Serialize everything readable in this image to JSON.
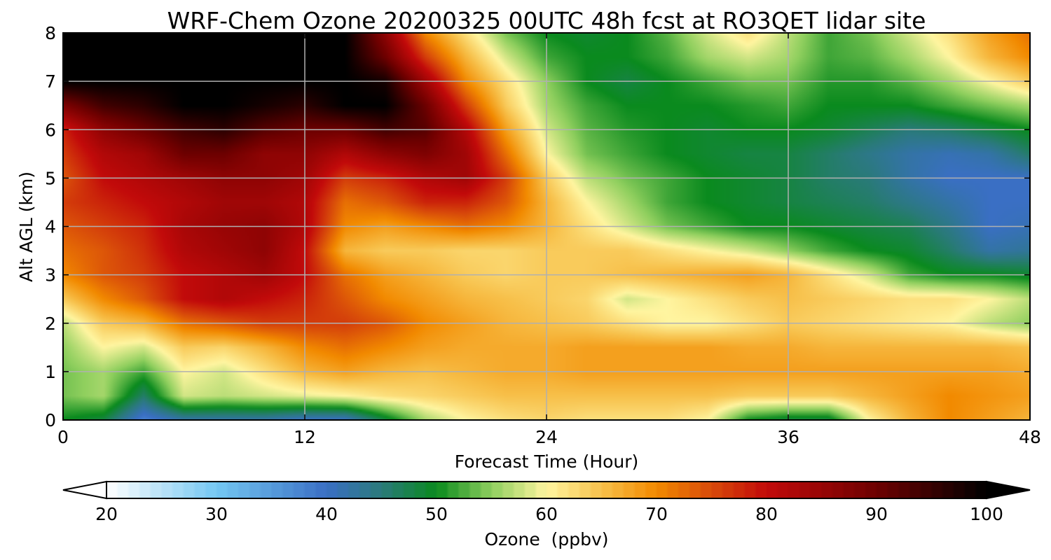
{
  "chart_data": {
    "type": "heatmap",
    "title": "WRF-Chem Ozone 20200325 00UTC 48h fcst at RO3QET lidar site",
    "xlabel": "Forecast Time (Hour)",
    "ylabel": "Alt AGL (km)",
    "xlim": [
      0,
      48
    ],
    "ylim": [
      0,
      8
    ],
    "xticks": [
      0,
      12,
      24,
      36,
      48
    ],
    "yticks": [
      0,
      1,
      2,
      3,
      4,
      5,
      6,
      7,
      8
    ],
    "grid": true,
    "x": [
      0,
      2,
      4,
      6,
      8,
      10,
      12,
      14,
      16,
      18,
      20,
      22,
      24,
      26,
      28,
      30,
      32,
      34,
      36,
      38,
      40,
      42,
      44,
      46,
      48
    ],
    "y": [
      0,
      0.5,
      1,
      1.5,
      2,
      2.5,
      3,
      3.5,
      4,
      4.5,
      5,
      5.5,
      6,
      6.5,
      7,
      7.5,
      8
    ],
    "z": [
      [
        50,
        48,
        38,
        42,
        42,
        42,
        40,
        40,
        48,
        56,
        60,
        62,
        63,
        62,
        62,
        62,
        60,
        50,
        48,
        48,
        60,
        66,
        70,
        68,
        66
      ],
      [
        54,
        56,
        46,
        58,
        57,
        58,
        59,
        60,
        62,
        63,
        64,
        65,
        65,
        65,
        65,
        65,
        65,
        64,
        64,
        64,
        66,
        68,
        70,
        69,
        68
      ],
      [
        54,
        56,
        52,
        60,
        58,
        62,
        66,
        68,
        66,
        65,
        66,
        67,
        67,
        68,
        68,
        68,
        68,
        68,
        68,
        68,
        68,
        68,
        68,
        68,
        67
      ],
      [
        55,
        60,
        58,
        64,
        63,
        66,
        70,
        72,
        70,
        68,
        67,
        67,
        67,
        68,
        68,
        68,
        68,
        67,
        67,
        66,
        66,
        66,
        66,
        66,
        65
      ],
      [
        57,
        64,
        66,
        72,
        74,
        76,
        76,
        76,
        74,
        70,
        68,
        66,
        65,
        64,
        62,
        60,
        60,
        62,
        64,
        63,
        62,
        61,
        60,
        57,
        55
      ],
      [
        64,
        70,
        74,
        80,
        82,
        80,
        78,
        74,
        70,
        68,
        66,
        65,
        64,
        63,
        58,
        60,
        62,
        64,
        65,
        64,
        63,
        62,
        62,
        60,
        57
      ],
      [
        70,
        74,
        76,
        80,
        82,
        84,
        80,
        72,
        68,
        66,
        64,
        63,
        64,
        64,
        65,
        66,
        67,
        68,
        66,
        62,
        58,
        52,
        50,
        50,
        49
      ],
      [
        72,
        74,
        77,
        82,
        84,
        86,
        80,
        66,
        64,
        64,
        63,
        63,
        64,
        64,
        64,
        62,
        60,
        58,
        55,
        52,
        50,
        49,
        46,
        42,
        43
      ],
      [
        74,
        76,
        78,
        83,
        85,
        86,
        82,
        70,
        68,
        70,
        72,
        70,
        66,
        62,
        58,
        54,
        52,
        50,
        50,
        49,
        48,
        47,
        44,
        40,
        41
      ],
      [
        76,
        78,
        80,
        82,
        84,
        84,
        82,
        72,
        74,
        78,
        78,
        74,
        66,
        60,
        56,
        52,
        50,
        49,
        48,
        47,
        46,
        44,
        42,
        40,
        40
      ],
      [
        74,
        80,
        82,
        84,
        86,
        86,
        84,
        76,
        78,
        82,
        84,
        76,
        64,
        57,
        54,
        52,
        50,
        49,
        48,
        46,
        45,
        42,
        40,
        40,
        40
      ],
      [
        76,
        82,
        84,
        90,
        90,
        86,
        86,
        82,
        86,
        88,
        84,
        72,
        60,
        54,
        52,
        50,
        49,
        48,
        48,
        46,
        44,
        42,
        41,
        42,
        46
      ],
      [
        78,
        86,
        90,
        94,
        96,
        92,
        90,
        90,
        94,
        92,
        82,
        68,
        58,
        53,
        51,
        50,
        49,
        50,
        50,
        49,
        47,
        45,
        46,
        48,
        50
      ],
      [
        88,
        94,
        96,
        100,
        100,
        98,
        96,
        100,
        100,
        90,
        76,
        64,
        56,
        52,
        50,
        50,
        50,
        51,
        52,
        50,
        50,
        50,
        52,
        54,
        56
      ],
      [
        100,
        100,
        100,
        100,
        100,
        100,
        100,
        100,
        98,
        84,
        70,
        62,
        55,
        50,
        48,
        50,
        52,
        54,
        54,
        51,
        51,
        53,
        56,
        60,
        64
      ],
      [
        100,
        100,
        100,
        100,
        100,
        100,
        100,
        100,
        90,
        76,
        66,
        58,
        52,
        50,
        50,
        52,
        56,
        58,
        56,
        52,
        53,
        56,
        60,
        66,
        70
      ],
      [
        100,
        100,
        100,
        100,
        100,
        100,
        100,
        100,
        86,
        70,
        62,
        54,
        50,
        49,
        50,
        53,
        58,
        62,
        57,
        52,
        54,
        58,
        62,
        68,
        72
      ]
    ],
    "colorbar": {
      "label": "Ozone  (ppbv)",
      "min": 20,
      "max": 100,
      "ticks": [
        20,
        30,
        40,
        50,
        60,
        70,
        80,
        90,
        100
      ],
      "extend": "both",
      "colors": [
        {
          "v": 20,
          "c": "#ffffff"
        },
        {
          "v": 30,
          "c": "#74c7f2"
        },
        {
          "v": 40,
          "c": "#3a6fc4"
        },
        {
          "v": 45,
          "c": "#2a7a7a"
        },
        {
          "v": 50,
          "c": "#0a8a1e"
        },
        {
          "v": 55,
          "c": "#8fcf5e"
        },
        {
          "v": 60,
          "c": "#fff5a0"
        },
        {
          "v": 65,
          "c": "#f7c04a"
        },
        {
          "v": 70,
          "c": "#f28a00"
        },
        {
          "v": 75,
          "c": "#d84a0a"
        },
        {
          "v": 80,
          "c": "#c20a0a"
        },
        {
          "v": 90,
          "c": "#6d0000"
        },
        {
          "v": 100,
          "c": "#000000"
        }
      ]
    }
  }
}
